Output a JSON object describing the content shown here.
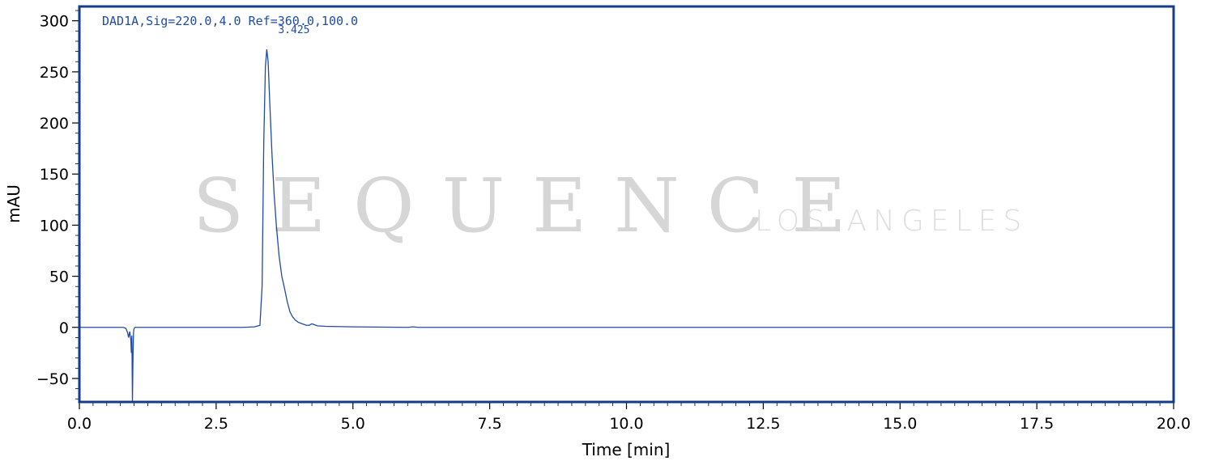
{
  "colors": {
    "frame": "#143c8c",
    "trace": "#1f4ba8",
    "label": "#1f4ba8",
    "watermark": "#d6d6d6"
  },
  "watermark": {
    "brand": "SEQUENCE",
    "location": "LOS ANGELES"
  },
  "chart_data": {
    "type": "line",
    "signal_label": "DAD1A,Sig=220.0,4.0 Ref=360.0,100.0",
    "xlabel": "Time [min]",
    "ylabel": "mAU",
    "xlim": [
      0,
      20
    ],
    "ylim": [
      -73,
      314
    ],
    "x_ticks": [
      "0.0",
      "2.5",
      "5.0",
      "7.5",
      "10.0",
      "12.5",
      "15.0",
      "17.5",
      "20.0"
    ],
    "x_tick_values": [
      0,
      2.5,
      5,
      7.5,
      10,
      12.5,
      15,
      17.5,
      20
    ],
    "y_ticks": [
      "−50",
      "0",
      "50",
      "100",
      "150",
      "200",
      "250",
      "300"
    ],
    "y_tick_values": [
      -50,
      0,
      50,
      100,
      150,
      200,
      250,
      300
    ],
    "grid": false,
    "peaks": [
      {
        "time": 3.425,
        "label": "3.425",
        "height": 272
      }
    ],
    "series": [
      {
        "x": [
          0,
          0.5,
          0.8,
          0.85,
          0.88,
          0.9,
          0.92,
          0.94,
          0.95,
          0.96,
          0.97,
          0.98,
          0.99,
          1.0,
          1.02,
          1.05,
          1.1,
          1.5,
          2.0,
          2.5,
          3.0,
          3.2,
          3.3,
          3.34,
          3.37,
          3.4,
          3.425,
          3.45,
          3.48,
          3.52,
          3.56,
          3.6,
          3.65,
          3.7,
          3.75,
          3.8,
          3.85,
          3.9,
          3.95,
          4.0,
          4.05,
          4.1,
          4.15,
          4.2,
          4.25,
          4.3,
          4.35,
          4.5,
          5.0,
          6.0,
          6.1,
          6.2,
          7.0,
          8.0,
          9.0,
          10.0,
          12.0,
          15.0,
          20.0
        ],
        "y": [
          0,
          0,
          0,
          -1,
          -5,
          -10,
          -4,
          -12,
          -25,
          -8,
          -73,
          -30,
          -5,
          -1,
          0,
          0,
          0,
          0,
          0,
          0,
          0,
          0.5,
          2,
          40,
          180,
          255,
          272,
          260,
          220,
          170,
          130,
          100,
          70,
          50,
          38,
          25,
          15,
          10,
          7,
          5,
          4,
          3,
          2,
          2,
          3.5,
          2.5,
          1.5,
          1,
          0.5,
          0,
          0.5,
          0,
          0,
          0,
          0,
          0,
          0,
          0,
          0
        ]
      }
    ]
  }
}
